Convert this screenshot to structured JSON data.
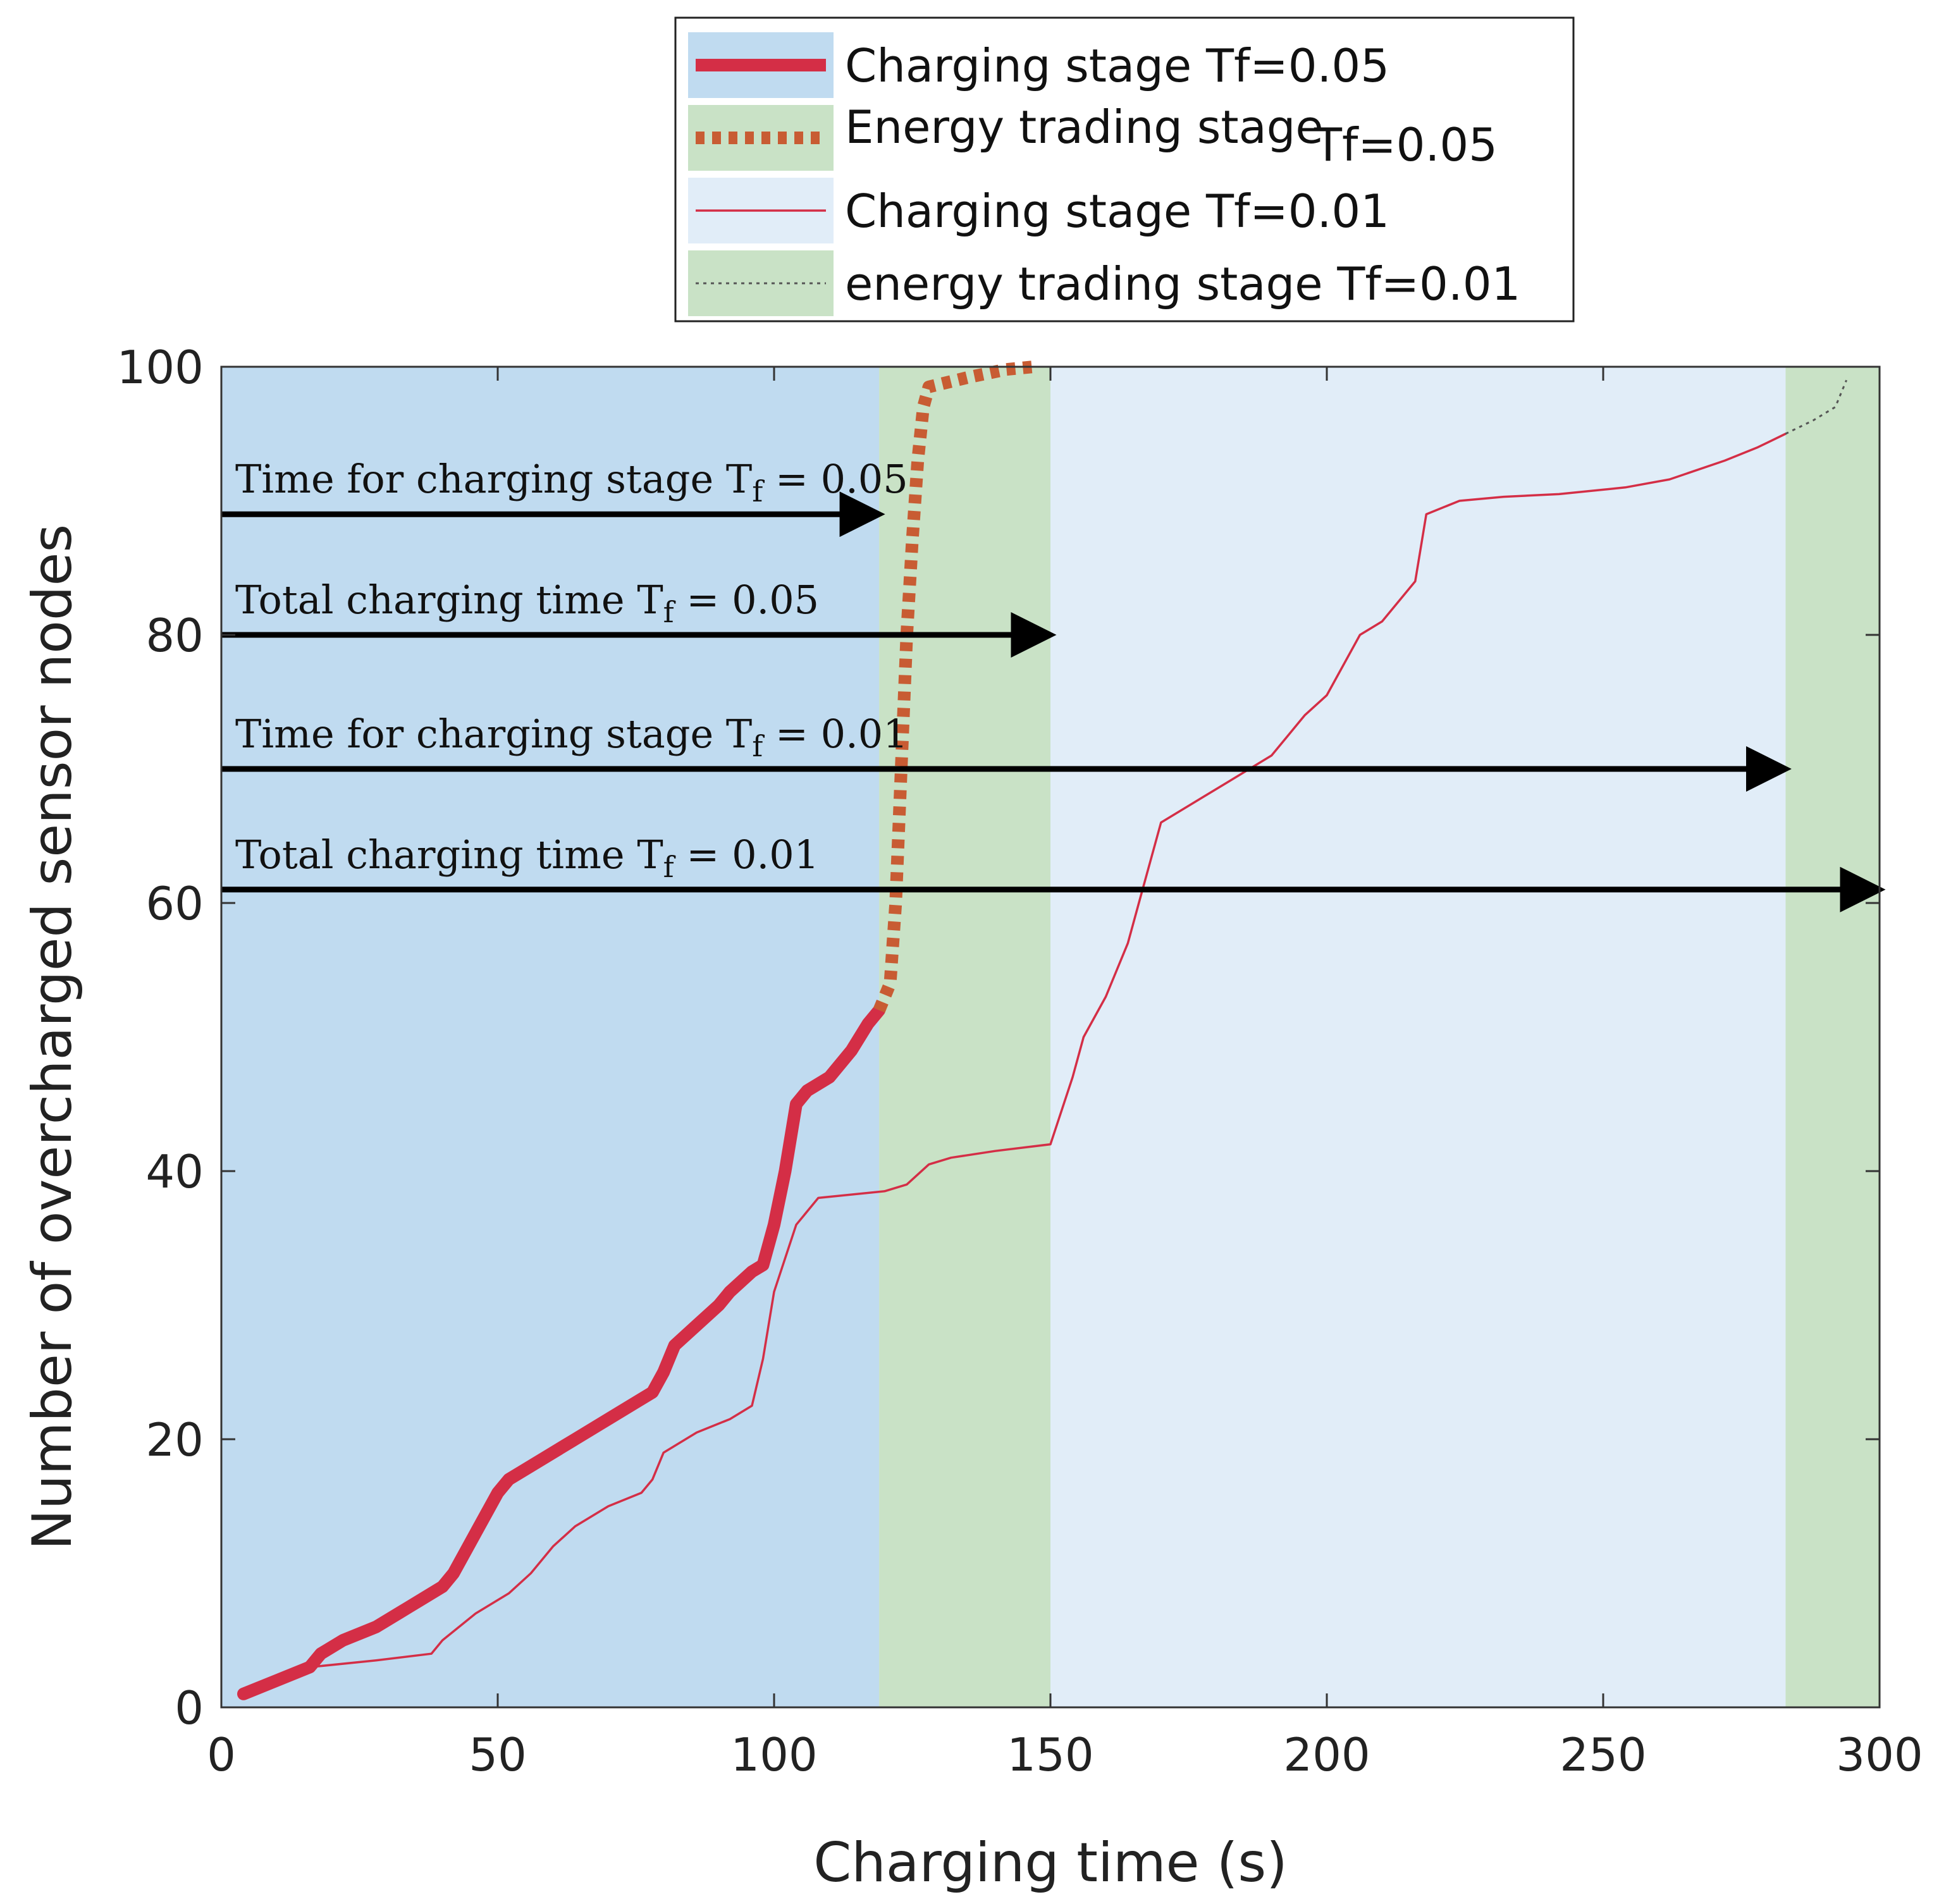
{
  "chart_data": {
    "type": "line",
    "xlabel": "Charging time (s)",
    "ylabel": "Number of overcharged sensor nodes",
    "xlim": [
      0,
      300
    ],
    "ylim": [
      0,
      100
    ],
    "xticks": [
      0,
      50,
      100,
      150,
      200,
      250,
      300
    ],
    "yticks": [
      0,
      20,
      40,
      60,
      80,
      100
    ],
    "grid": false,
    "legend_position": "top-center-outside",
    "colors": {
      "charging_bg_tf005": "#c0dbf0",
      "charging_bg_tf001": "#e1edf8",
      "trading_bg": "#c9e2c6",
      "charging_line": "#d42e46",
      "trading_line_tf005": "#c85c33",
      "trading_line_tf001": "#555555",
      "arrow": "#000000"
    },
    "regions": [
      {
        "name": "charging stage Tf=0.05",
        "x": [
          0,
          119
        ],
        "color_key": "charging_bg_tf005"
      },
      {
        "name": "energy trading stage Tf=0.05",
        "x": [
          119,
          150
        ],
        "color_key": "trading_bg"
      },
      {
        "name": "charging stage Tf=0.01",
        "x": [
          150,
          283
        ],
        "color_key": "charging_bg_tf001"
      },
      {
        "name": "energy trading stage Tf=0.01",
        "x": [
          283,
          300
        ],
        "color_key": "trading_bg"
      }
    ],
    "legend": [
      {
        "label": "Charging stage Tf=0.05",
        "style": "thick-solid",
        "color_key": "charging_line",
        "bg_key": "charging_bg_tf005"
      },
      {
        "label_main": "Energy trading stage",
        "label_suffix": "Tf=0.05",
        "style": "thick-dotted",
        "color_key": "trading_line_tf005",
        "bg_key": "trading_bg"
      },
      {
        "label": "Charging stage Tf=0.01",
        "style": "thin-solid",
        "color_key": "charging_line",
        "bg_key": "charging_bg_tf001"
      },
      {
        "label": "energy trading stage Tf=0.01",
        "style": "thin-dotted",
        "color_key": "trading_line_tf001",
        "bg_key": "trading_bg"
      }
    ],
    "series": [
      {
        "name": "Charging stage Tf=0.05",
        "style": "thick-solid",
        "color_key": "charging_line",
        "points": [
          [
            4,
            1
          ],
          [
            10,
            2
          ],
          [
            16,
            3
          ],
          [
            18,
            4
          ],
          [
            22,
            5
          ],
          [
            28,
            6
          ],
          [
            34,
            7.5
          ],
          [
            40,
            9
          ],
          [
            42,
            10
          ],
          [
            46,
            13
          ],
          [
            50,
            16
          ],
          [
            52,
            17
          ],
          [
            56,
            18
          ],
          [
            64,
            20
          ],
          [
            72,
            22
          ],
          [
            78,
            23.5
          ],
          [
            80,
            25
          ],
          [
            82,
            27
          ],
          [
            86,
            28.5
          ],
          [
            90,
            30
          ],
          [
            92,
            31
          ],
          [
            96,
            32.5
          ],
          [
            98,
            33
          ],
          [
            100,
            36
          ],
          [
            102,
            40
          ],
          [
            104,
            45
          ],
          [
            106,
            46
          ],
          [
            110,
            47
          ],
          [
            114,
            49
          ],
          [
            117,
            51
          ],
          [
            119,
            52
          ]
        ]
      },
      {
        "name": "Energy trading stage Tf=0.05",
        "style": "thick-dotted",
        "color_key": "trading_line_tf005",
        "points": [
          [
            119,
            52
          ],
          [
            121,
            54
          ],
          [
            122,
            60
          ],
          [
            123,
            70
          ],
          [
            124,
            80
          ],
          [
            125,
            87
          ],
          [
            126,
            93
          ],
          [
            127,
            97
          ],
          [
            128,
            98.5
          ],
          [
            135,
            99.2
          ],
          [
            142,
            99.8
          ],
          [
            147,
            100
          ]
        ]
      },
      {
        "name": "Charging stage Tf=0.01",
        "style": "thin-solid",
        "color_key": "charging_line",
        "points": [
          [
            16,
            3
          ],
          [
            28,
            3.5
          ],
          [
            38,
            4
          ],
          [
            40,
            5
          ],
          [
            46,
            7
          ],
          [
            52,
            8.5
          ],
          [
            56,
            10
          ],
          [
            60,
            12
          ],
          [
            64,
            13.5
          ],
          [
            70,
            15
          ],
          [
            76,
            16
          ],
          [
            78,
            17
          ],
          [
            80,
            19
          ],
          [
            86,
            20.5
          ],
          [
            92,
            21.5
          ],
          [
            96,
            22.5
          ],
          [
            98,
            26
          ],
          [
            100,
            31
          ],
          [
            104,
            36
          ],
          [
            108,
            38
          ],
          [
            120,
            38.5
          ],
          [
            124,
            39
          ],
          [
            128,
            40.5
          ],
          [
            132,
            41
          ],
          [
            140,
            41.5
          ],
          [
            150,
            42
          ],
          [
            154,
            47
          ],
          [
            156,
            50
          ],
          [
            160,
            53
          ],
          [
            162,
            55
          ],
          [
            164,
            57
          ],
          [
            166,
            60
          ],
          [
            170,
            66
          ],
          [
            176,
            67.5
          ],
          [
            182,
            69
          ],
          [
            190,
            71
          ],
          [
            196,
            74
          ],
          [
            200,
            75.5
          ],
          [
            206,
            80
          ],
          [
            210,
            81
          ],
          [
            216,
            84
          ],
          [
            218,
            89
          ],
          [
            224,
            90
          ],
          [
            232,
            90.3
          ],
          [
            242,
            90.5
          ],
          [
            254,
            91
          ],
          [
            262,
            91.6
          ],
          [
            272,
            93
          ],
          [
            278,
            94
          ],
          [
            283,
            95
          ]
        ]
      },
      {
        "name": "energy trading stage Tf=0.01",
        "style": "thin-dotted",
        "color_key": "trading_line_tf001",
        "points": [
          [
            283,
            95
          ],
          [
            288,
            96
          ],
          [
            292,
            97
          ],
          [
            294,
            99
          ]
        ]
      }
    ],
    "annotations": [
      {
        "prefix": "Time for charging stage T",
        "sub": "f",
        "suffix": " = 0.05",
        "arrow_y": 89,
        "arrow_x": [
          0,
          119
        ]
      },
      {
        "prefix": "Total charging time T",
        "sub": "f",
        "suffix": " = 0.05",
        "arrow_y": 80,
        "arrow_x": [
          0,
          150
        ]
      },
      {
        "prefix": "Time for charging stage T",
        "sub": "f",
        "suffix": " = 0.01",
        "arrow_y": 70,
        "arrow_x": [
          0,
          283
        ]
      },
      {
        "prefix": "Total charging time T",
        "sub": "f",
        "suffix": " = 0.01",
        "arrow_y": 61,
        "arrow_x": [
          0,
          300
        ]
      }
    ]
  }
}
